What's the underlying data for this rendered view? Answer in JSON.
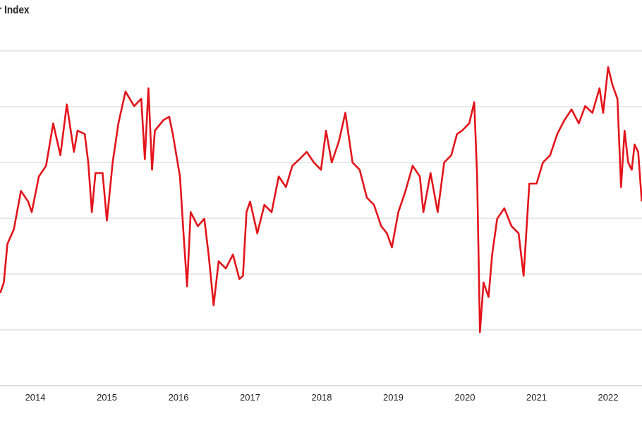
{
  "chart_data": {
    "type": "line",
    "title": "r Index",
    "xlabel": "",
    "ylabel": "",
    "xlim": [
      2013.507,
      2022.473
    ],
    "ylim": [
      0,
      6
    ],
    "grid": true,
    "line_color": "#e3141b",
    "x_ticks": [
      2014,
      2015,
      2016,
      2017,
      2018,
      2019,
      2020,
      2021,
      2022
    ],
    "x_tick_labels": [
      "2014",
      "2015",
      "2016",
      "2017",
      "2018",
      "2019",
      "2020",
      "2021",
      "2022"
    ],
    "y_gridlines": [
      1,
      2,
      3,
      4,
      5,
      6
    ],
    "series": [
      {
        "name": "Index",
        "x": [
          2013.51,
          2013.56,
          2013.61,
          2013.7,
          2013.8,
          2013.9,
          2013.95,
          2014.05,
          2014.15,
          2014.25,
          2014.35,
          2014.44,
          2014.54,
          2014.59,
          2014.69,
          2014.74,
          2014.79,
          2014.84,
          2014.94,
          2015.0,
          2015.08,
          2015.16,
          2015.26,
          2015.38,
          2015.48,
          2015.53,
          2015.58,
          2015.63,
          2015.67,
          2015.79,
          2015.87,
          2015.92,
          2016.02,
          2016.07,
          2016.12,
          2016.17,
          2016.27,
          2016.36,
          2016.42,
          2016.49,
          2016.56,
          2016.66,
          2016.76,
          2016.85,
          2016.9,
          2016.95,
          2017.0,
          2017.1,
          2017.2,
          2017.3,
          2017.4,
          2017.5,
          2017.59,
          2017.69,
          2017.79,
          2017.89,
          2017.99,
          2018.06,
          2018.14,
          2018.24,
          2018.33,
          2018.43,
          2018.53,
          2018.63,
          2018.73,
          2018.83,
          2018.91,
          2018.98,
          2019.07,
          2019.17,
          2019.27,
          2019.37,
          2019.42,
          2019.52,
          2019.62,
          2019.71,
          2019.81,
          2019.89,
          2019.96,
          2020.06,
          2020.13,
          2020.17,
          2020.21,
          2020.26,
          2020.33,
          2020.38,
          2020.45,
          2020.55,
          2020.65,
          2020.75,
          2020.82,
          2020.9,
          2021.0,
          2021.09,
          2021.19,
          2021.29,
          2021.39,
          2021.49,
          2021.59,
          2021.68,
          2021.78,
          2021.88,
          2021.93,
          2022.0,
          2022.06,
          2022.13,
          2022.18,
          2022.23,
          2022.28,
          2022.33,
          2022.37,
          2022.42,
          2022.47
        ],
        "y": [
          1.66,
          1.85,
          2.54,
          2.8,
          3.49,
          3.3,
          3.11,
          3.75,
          3.94,
          4.7,
          4.13,
          5.04,
          4.19,
          4.57,
          4.51,
          4.0,
          3.11,
          3.81,
          3.81,
          2.96,
          4.0,
          4.7,
          5.27,
          5.01,
          5.14,
          4.06,
          5.33,
          3.87,
          4.57,
          4.76,
          4.82,
          4.51,
          3.75,
          2.73,
          1.78,
          3.11,
          2.86,
          2.99,
          2.35,
          1.44,
          2.23,
          2.1,
          2.35,
          1.91,
          1.97,
          3.11,
          3.3,
          2.73,
          3.24,
          3.11,
          3.75,
          3.56,
          3.94,
          4.06,
          4.19,
          4.0,
          3.87,
          4.57,
          4.0,
          4.38,
          4.89,
          4.0,
          3.87,
          3.37,
          3.24,
          2.86,
          2.73,
          2.48,
          3.11,
          3.49,
          3.94,
          3.75,
          3.11,
          3.81,
          3.11,
          4.0,
          4.13,
          4.51,
          4.57,
          4.7,
          5.08,
          3.75,
          0.96,
          1.85,
          1.59,
          2.35,
          2.99,
          3.18,
          2.86,
          2.73,
          1.97,
          3.62,
          3.62,
          4.0,
          4.13,
          4.51,
          4.76,
          4.95,
          4.7,
          5.01,
          4.89,
          5.33,
          4.89,
          5.71,
          5.39,
          5.14,
          3.56,
          4.57,
          4.0,
          3.87,
          4.32,
          4.19,
          3.3
        ]
      }
    ]
  }
}
